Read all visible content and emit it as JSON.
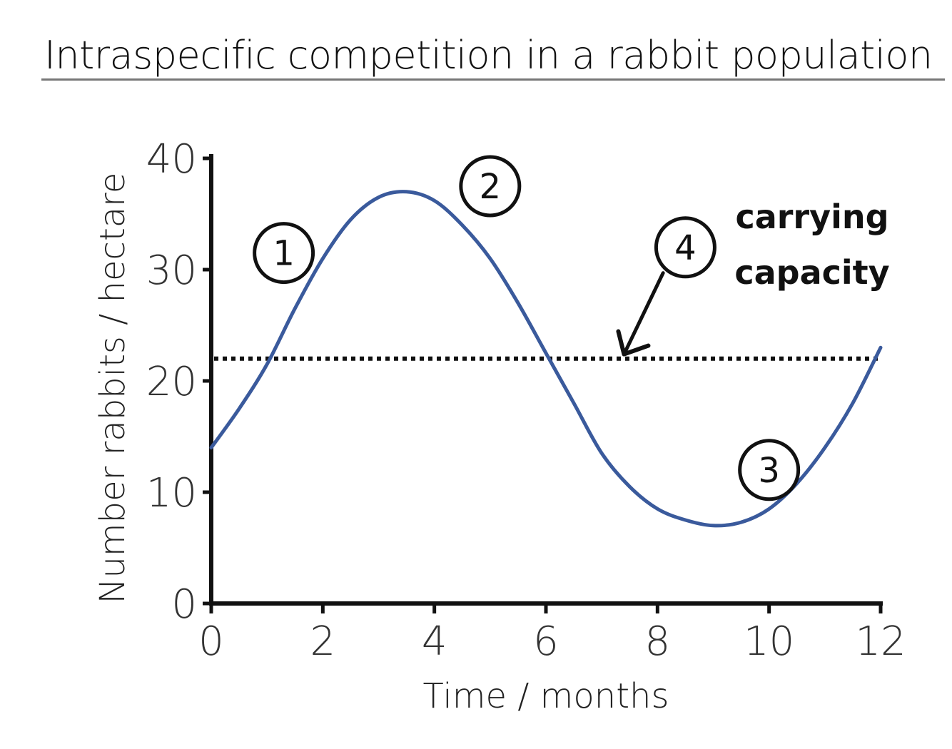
{
  "chart_data": {
    "type": "line",
    "title": "Intraspecific competition in a rabbit population",
    "xlabel": "Time / months",
    "ylabel": "Number rabbits / hectare",
    "xlim": [
      0,
      12
    ],
    "ylim": [
      0,
      40
    ],
    "x_ticks": [
      0,
      2,
      4,
      6,
      8,
      10,
      12
    ],
    "y_ticks": [
      0,
      10,
      20,
      30,
      40
    ],
    "series": [
      {
        "color": "#3a5a9c",
        "x": [
          0,
          0.5,
          1,
          1.5,
          2,
          2.5,
          3,
          3.5,
          4,
          4.5,
          5,
          5.5,
          6,
          6.5,
          7,
          7.5,
          8,
          8.5,
          9,
          9.5,
          10,
          10.5,
          11,
          11.5,
          12
        ],
        "y": [
          14,
          17.5,
          21.5,
          26.5,
          31,
          34.5,
          36.5,
          37,
          36.2,
          34,
          31,
          27,
          22.5,
          18,
          13.5,
          10.5,
          8.5,
          7.5,
          7,
          7.3,
          8.5,
          10.8,
          14,
          18,
          23
        ]
      }
    ],
    "reference_line": {
      "y": 22,
      "style": "dotted",
      "color": "#111111"
    },
    "annotations": [
      {
        "label": "1",
        "x": 1.3,
        "y": 31.5
      },
      {
        "label": "2",
        "x": 5,
        "y": 37.5
      },
      {
        "label": "3",
        "x": 10,
        "y": 12
      },
      {
        "label": "4",
        "x": 8.5,
        "y": 32
      }
    ],
    "annotation_text": [
      "carrying",
      "capacity"
    ],
    "arrow": {
      "from": [
        8.1,
        29.7
      ],
      "to": [
        7.4,
        22.4
      ]
    },
    "grid": false,
    "legend": "none"
  }
}
